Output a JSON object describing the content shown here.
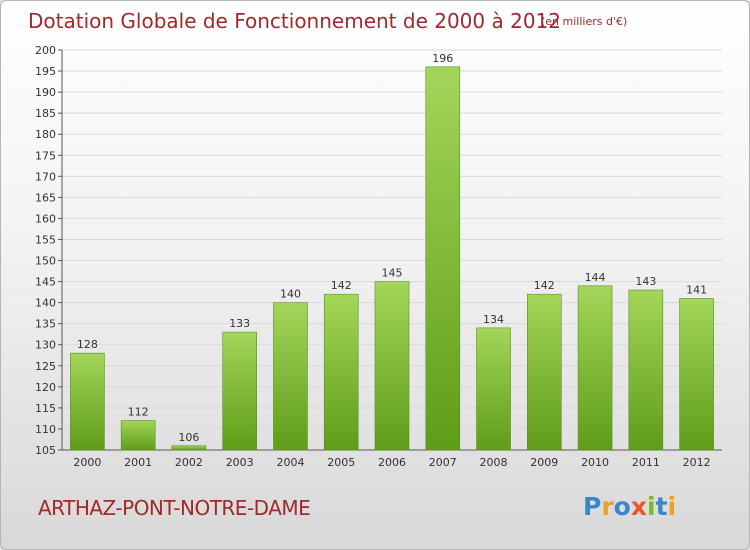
{
  "header": {
    "title": "Dotation Globale de Fonctionnement de 2000 à 2012",
    "subtitle": "(en milliers d'€)"
  },
  "footer": {
    "place": "ARTHAZ-PONT-NOTRE-DAME",
    "logo_text": "Proxiti"
  },
  "colors": {
    "title": "#a0292a",
    "bar_top": "#a3d65a",
    "bar_bottom": "#5f9c19",
    "bar_edge": "#5e8f22",
    "grid": "#d9d9d9",
    "axis": "#555555"
  },
  "chart_data": {
    "type": "bar",
    "categories": [
      "2000",
      "2001",
      "2002",
      "2003",
      "2004",
      "2005",
      "2006",
      "2007",
      "2008",
      "2009",
      "2010",
      "2011",
      "2012"
    ],
    "values": [
      128,
      112,
      106,
      133,
      140,
      142,
      145,
      196,
      134,
      142,
      144,
      143,
      141
    ],
    "ylim": [
      105,
      200
    ],
    "ytick_step": 5,
    "grid": true,
    "data_labels": true,
    "legend": "none",
    "xlabel": "",
    "ylabel": ""
  }
}
